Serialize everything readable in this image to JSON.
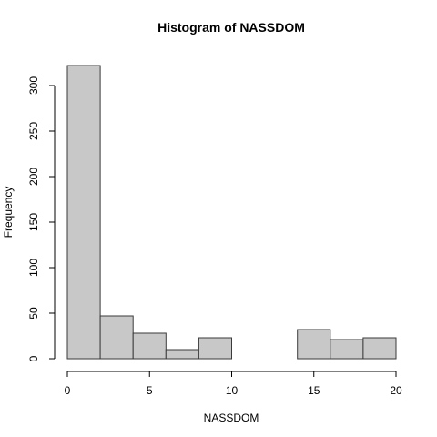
{
  "chart_data": {
    "type": "bar",
    "title": "Histogram of NASSDOM",
    "xlabel": "NASSDOM",
    "ylabel": "Frequency",
    "bins": [
      {
        "from": 0,
        "to": 2,
        "count": 322
      },
      {
        "from": 2,
        "to": 4,
        "count": 47
      },
      {
        "from": 4,
        "to": 6,
        "count": 28
      },
      {
        "from": 6,
        "to": 8,
        "count": 10
      },
      {
        "from": 8,
        "to": 10,
        "count": 23
      },
      {
        "from": 10,
        "to": 12,
        "count": 0
      },
      {
        "from": 12,
        "to": 14,
        "count": 0
      },
      {
        "from": 14,
        "to": 16,
        "count": 32
      },
      {
        "from": 16,
        "to": 18,
        "count": 21
      },
      {
        "from": 18,
        "to": 20,
        "count": 23
      }
    ],
    "xlim": [
      0,
      20
    ],
    "ylim": [
      0,
      322
    ],
    "x_ticks": [
      0,
      5,
      10,
      15,
      20
    ],
    "y_ticks": [
      0,
      50,
      100,
      150,
      200,
      250,
      300
    ],
    "grid": false
  }
}
